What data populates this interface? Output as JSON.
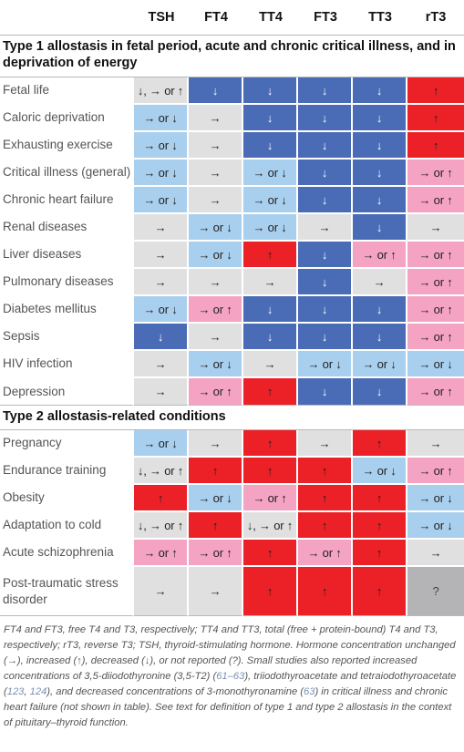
{
  "headers": [
    "TSH",
    "FT4",
    "TT4",
    "FT3",
    "TT3",
    "rT3"
  ],
  "section1_title": "Type 1 allostasis in fetal period, acute and chronic critical illness, and in deprivation of energy",
  "section2_title": "Type 2 allostasis-related conditions",
  "section1_rows": [
    {
      "label": "Fetal life",
      "cells": [
        {
          "t": "↓, → or ↑",
          "c": "g"
        },
        {
          "t": "↓",
          "c": "db"
        },
        {
          "t": "↓",
          "c": "db"
        },
        {
          "t": "↓",
          "c": "db"
        },
        {
          "t": "↓",
          "c": "db"
        },
        {
          "t": "↑",
          "c": "rd"
        }
      ]
    },
    {
      "label": "Caloric deprivation",
      "cells": [
        {
          "t": "→ or ↓",
          "c": "lb"
        },
        {
          "t": "→",
          "c": "g"
        },
        {
          "t": "↓",
          "c": "db"
        },
        {
          "t": "↓",
          "c": "db"
        },
        {
          "t": "↓",
          "c": "db"
        },
        {
          "t": "↑",
          "c": "rd"
        }
      ]
    },
    {
      "label": "Exhausting exercise",
      "cells": [
        {
          "t": "→ or ↓",
          "c": "lb"
        },
        {
          "t": "→",
          "c": "g"
        },
        {
          "t": "↓",
          "c": "db"
        },
        {
          "t": "↓",
          "c": "db"
        },
        {
          "t": "↓",
          "c": "db"
        },
        {
          "t": "↑",
          "c": "rd"
        }
      ]
    },
    {
      "label": "Critical illness (general)",
      "cells": [
        {
          "t": "→ or ↓",
          "c": "lb"
        },
        {
          "t": "→",
          "c": "g"
        },
        {
          "t": "→ or ↓",
          "c": "lb"
        },
        {
          "t": "↓",
          "c": "db"
        },
        {
          "t": "↓",
          "c": "db"
        },
        {
          "t": "→ or ↑",
          "c": "pk"
        }
      ]
    },
    {
      "label": "Chronic heart failure",
      "cells": [
        {
          "t": "→ or ↓",
          "c": "lb"
        },
        {
          "t": "→",
          "c": "g"
        },
        {
          "t": "→ or ↓",
          "c": "lb"
        },
        {
          "t": "↓",
          "c": "db"
        },
        {
          "t": "↓",
          "c": "db"
        },
        {
          "t": "→ or ↑",
          "c": "pk"
        }
      ]
    },
    {
      "label": "Renal diseases",
      "cells": [
        {
          "t": "→",
          "c": "g"
        },
        {
          "t": "→ or ↓",
          "c": "lb"
        },
        {
          "t": "→ or ↓",
          "c": "lb"
        },
        {
          "t": "→",
          "c": "g"
        },
        {
          "t": "↓",
          "c": "db"
        },
        {
          "t": "→",
          "c": "g"
        }
      ]
    },
    {
      "label": "Liver diseases",
      "cells": [
        {
          "t": "→",
          "c": "g"
        },
        {
          "t": "→ or ↓",
          "c": "lb"
        },
        {
          "t": "↑",
          "c": "rd"
        },
        {
          "t": "↓",
          "c": "db"
        },
        {
          "t": "→ or ↑",
          "c": "pk"
        },
        {
          "t": "→ or ↑",
          "c": "pk"
        }
      ]
    },
    {
      "label": "Pulmonary diseases",
      "cells": [
        {
          "t": "→",
          "c": "g"
        },
        {
          "t": "→",
          "c": "g"
        },
        {
          "t": "→",
          "c": "g"
        },
        {
          "t": "↓",
          "c": "db"
        },
        {
          "t": "→",
          "c": "g"
        },
        {
          "t": "→ or ↑",
          "c": "pk"
        }
      ]
    },
    {
      "label": "Diabetes mellitus",
      "cells": [
        {
          "t": "→ or ↓",
          "c": "lb"
        },
        {
          "t": "→ or ↑",
          "c": "pk"
        },
        {
          "t": "↓",
          "c": "db"
        },
        {
          "t": "↓",
          "c": "db"
        },
        {
          "t": "↓",
          "c": "db"
        },
        {
          "t": "→ or ↑",
          "c": "pk"
        }
      ]
    },
    {
      "label": "Sepsis",
      "cells": [
        {
          "t": "↓",
          "c": "db"
        },
        {
          "t": "→",
          "c": "g"
        },
        {
          "t": "↓",
          "c": "db"
        },
        {
          "t": "↓",
          "c": "db"
        },
        {
          "t": "↓",
          "c": "db"
        },
        {
          "t": "→ or ↑",
          "c": "pk"
        }
      ]
    },
    {
      "label": "HIV infection",
      "cells": [
        {
          "t": "→",
          "c": "g"
        },
        {
          "t": "→ or ↓",
          "c": "lb"
        },
        {
          "t": "→",
          "c": "g"
        },
        {
          "t": "→ or ↓",
          "c": "lb"
        },
        {
          "t": "→ or ↓",
          "c": "lb"
        },
        {
          "t": "→ or ↓",
          "c": "lb"
        }
      ]
    },
    {
      "label": "Depression",
      "cells": [
        {
          "t": "→",
          "c": "g"
        },
        {
          "t": "→ or ↑",
          "c": "pk"
        },
        {
          "t": "↑",
          "c": "rd"
        },
        {
          "t": "↓",
          "c": "db"
        },
        {
          "t": "↓",
          "c": "db"
        },
        {
          "t": "→ or ↑",
          "c": "pk"
        }
      ]
    }
  ],
  "section2_rows": [
    {
      "label": "Pregnancy",
      "cells": [
        {
          "t": "→ or ↓",
          "c": "lb"
        },
        {
          "t": "→",
          "c": "g"
        },
        {
          "t": "↑",
          "c": "rd"
        },
        {
          "t": "→",
          "c": "g"
        },
        {
          "t": "↑",
          "c": "rd"
        },
        {
          "t": "→",
          "c": "g"
        }
      ]
    },
    {
      "label": "Endurance training",
      "cells": [
        {
          "t": "↓, → or ↑",
          "c": "g"
        },
        {
          "t": "↑",
          "c": "rd"
        },
        {
          "t": "↑",
          "c": "rd"
        },
        {
          "t": "↑",
          "c": "rd"
        },
        {
          "t": "→ or ↓",
          "c": "lb"
        },
        {
          "t": "→ or ↑",
          "c": "pk"
        }
      ]
    },
    {
      "label": "Obesity",
      "cells": [
        {
          "t": "↑",
          "c": "rd"
        },
        {
          "t": "→ or ↓",
          "c": "lb"
        },
        {
          "t": "→ or ↑",
          "c": "pk"
        },
        {
          "t": "↑",
          "c": "rd"
        },
        {
          "t": "↑",
          "c": "rd"
        },
        {
          "t": "→ or ↓",
          "c": "lb"
        }
      ]
    },
    {
      "label": "Adaptation to cold",
      "cells": [
        {
          "t": "↓, → or ↑",
          "c": "g"
        },
        {
          "t": "↑",
          "c": "rd"
        },
        {
          "t": "↓, → or ↑",
          "c": "g"
        },
        {
          "t": "↑",
          "c": "rd"
        },
        {
          "t": "↑",
          "c": "rd"
        },
        {
          "t": "→ or ↓",
          "c": "lb"
        }
      ]
    },
    {
      "label": "Acute schizophrenia",
      "cells": [
        {
          "t": "→ or ↑",
          "c": "pk"
        },
        {
          "t": "→ or ↑",
          "c": "pk"
        },
        {
          "t": "↑",
          "c": "rd"
        },
        {
          "t": "→ or ↑",
          "c": "pk"
        },
        {
          "t": "↑",
          "c": "rd"
        },
        {
          "t": "→",
          "c": "g"
        }
      ]
    },
    {
      "label": "Post-traumatic stress disorder",
      "label_lines": [
        "Post-traumatic stress",
        "disorder"
      ],
      "cells": [
        {
          "t": "→",
          "c": "g"
        },
        {
          "t": "→",
          "c": "g"
        },
        {
          "t": "↑",
          "c": "rd"
        },
        {
          "t": "↑",
          "c": "rd"
        },
        {
          "t": "↑",
          "c": "rd"
        },
        {
          "t": "?",
          "c": "qg"
        }
      ]
    }
  ],
  "footnote": [
    {
      "t": "FT4 and FT3, free T4 and T3, respectively; TT4 and TT3, total (free + protein-bound) T4 and T3, respectively; rT3, reverse T3; TSH, thyroid-stimulating hormone. Hormone concentration unchanged (→), increased (↑), decreased (↓), or not reported (?). Small studies also reported increased concentrations of 3,5-diiodothyronine (3,5-T2) ("
    },
    {
      "t": "61–63",
      "ref": true
    },
    {
      "t": "), triiodothyroacetate and tetraiodothyroacetate ("
    },
    {
      "t": "123",
      "ref": true
    },
    {
      "t": ", "
    },
    {
      "t": "124",
      "ref": true
    },
    {
      "t": "), and decreased concentrations of 3-monothyronamine ("
    },
    {
      "t": "63",
      "ref": true
    },
    {
      "t": ") in critical illness and chronic heart failure (not shown in table). See text for definition of type 1 and type 2 allostasis in the context of pituitary–thyroid function."
    }
  ]
}
